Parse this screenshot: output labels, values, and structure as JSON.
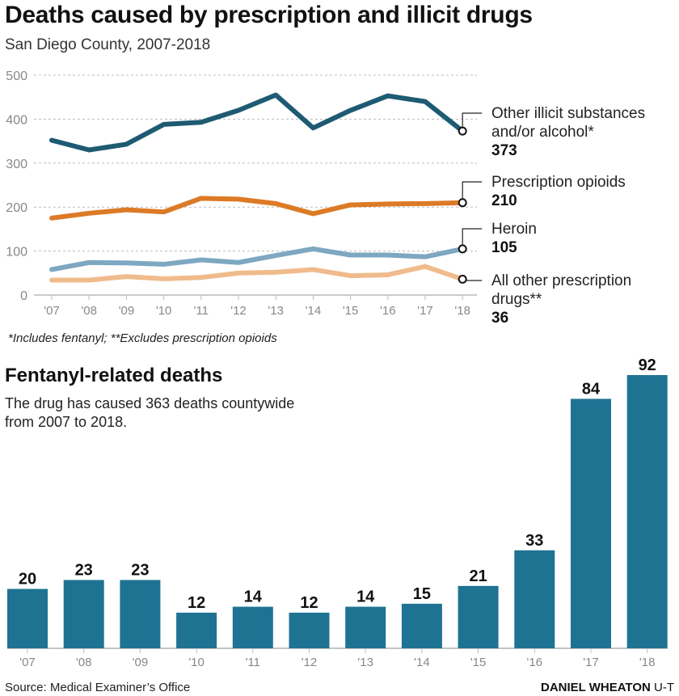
{
  "header": {
    "title": "Deaths caused by prescription and illicit drugs",
    "subtitle": "San Diego County, 2007-2018"
  },
  "footnote": "*Includes fentanyl; **Excludes prescription opioids",
  "fentanyl": {
    "title": "Fentanyl-related deaths",
    "description": "The drug has caused 363 deaths countywide from 2007 to 2018."
  },
  "footer": {
    "source": "Source: Medical Examiner’s Office",
    "credit_name": "DANIEL WHEATON",
    "credit_org": "U-T"
  },
  "chart_data": [
    {
      "type": "line",
      "categories": [
        "'07",
        "'08",
        "'09",
        "'10",
        "'11",
        "'12",
        "'13",
        "'14",
        "'15",
        "'16",
        "'17",
        "'18"
      ],
      "ylim": [
        0,
        500
      ],
      "yticks": [
        0,
        100,
        200,
        300,
        400,
        500
      ],
      "grid": true,
      "series": [
        {
          "name": "Other illicit substances and/or alcohol*",
          "label_lines": [
            "Other illicit substances",
            "and/or alcohol*"
          ],
          "end_label": "373",
          "color": "#1e5b73",
          "values": [
            352,
            330,
            343,
            388,
            393,
            420,
            455,
            380,
            420,
            453,
            440,
            373
          ]
        },
        {
          "name": "Prescription opioids",
          "label_lines": [
            "Prescription opioids"
          ],
          "end_label": "210",
          "color": "#dc7a26",
          "values": [
            175,
            186,
            194,
            189,
            220,
            218,
            208,
            185,
            205,
            207,
            208,
            210
          ]
        },
        {
          "name": "Heroin",
          "label_lines": [
            "Heroin"
          ],
          "end_label": "105",
          "color": "#7ea7c1",
          "values": [
            58,
            74,
            73,
            70,
            80,
            74,
            90,
            105,
            91,
            91,
            87,
            105
          ]
        },
        {
          "name": "All other prescription drugs**",
          "label_lines": [
            "All other prescription",
            "drugs**"
          ],
          "end_label": "36",
          "color": "#f0bb8c",
          "values": [
            34,
            34,
            42,
            37,
            40,
            50,
            52,
            58,
            44,
            46,
            65,
            36
          ]
        }
      ]
    },
    {
      "type": "bar",
      "categories": [
        "'07",
        "'08",
        "'09",
        "'10",
        "'11",
        "'12",
        "'13",
        "'14",
        "'15",
        "'16",
        "'17",
        "'18"
      ],
      "values": [
        20,
        23,
        23,
        12,
        14,
        12,
        14,
        15,
        21,
        33,
        84,
        92
      ],
      "color": "#1e7393",
      "ylim": [
        0,
        92
      ]
    }
  ]
}
